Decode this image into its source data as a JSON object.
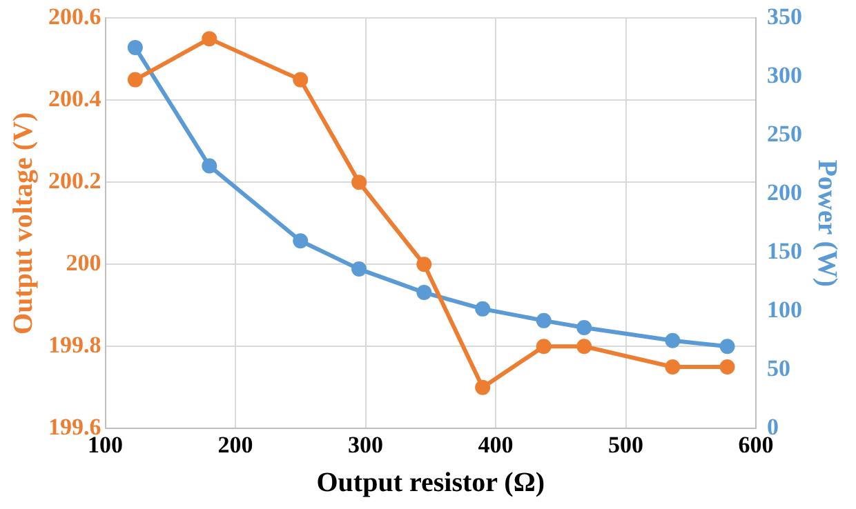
{
  "chart_data": {
    "type": "line",
    "xlabel": "Output resistor (Ω)",
    "ylabel": "Output voltage (V)",
    "y2label": "Power (W)",
    "x": [
      123,
      180,
      250,
      295,
      345,
      390,
      437,
      468,
      536,
      578
    ],
    "series": [
      {
        "color": "#ed7d31",
        "values": [
          200.45,
          200.55,
          200.45,
          200.2,
          200.0,
          199.7,
          199.8,
          199.8,
          199.75,
          199.75
        ]
      },
      {
        "color": "#5b9bd5",
        "axis": "y2",
        "values": [
          325,
          224,
          160,
          136,
          116,
          102,
          92,
          86,
          75,
          70
        ]
      }
    ],
    "xlim": [
      100,
      600
    ],
    "xticks": [
      100,
      200,
      300,
      400,
      500,
      600
    ],
    "ylim": [
      199.6,
      200.6
    ],
    "yticks": [
      {
        "value": 199.6,
        "label": "199.6"
      },
      {
        "value": 199.8,
        "label": "199.8"
      },
      {
        "value": 200,
        "label": "200"
      },
      {
        "value": 200.2,
        "label": "200.2"
      },
      {
        "value": 200.4,
        "label": "200.4"
      },
      {
        "value": 200.6,
        "label": "200.6"
      }
    ],
    "y2lim": [
      0,
      350
    ],
    "y2ticks": [
      0,
      50,
      100,
      150,
      200,
      250,
      300,
      350
    ],
    "grid": true,
    "marker": "circle",
    "line_style": "solid",
    "legend": false
  }
}
